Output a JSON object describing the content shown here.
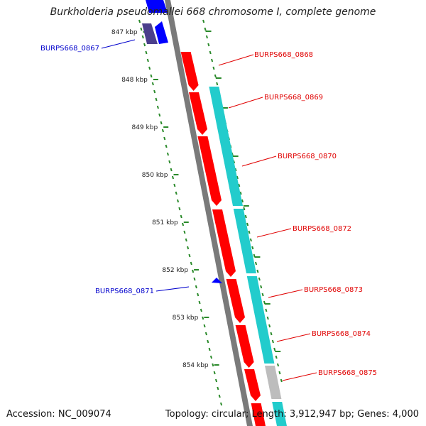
{
  "title": "Burkholderia pseudomallei 668 chromosome I, complete genome",
  "footer": {
    "accession": "Accession: NC_009074",
    "topology": "Topology: circular; Length: 3,912,947 bp; Genes: 4,000"
  },
  "colors": {
    "forward_gene": "#ff0000",
    "reverse_gene": "#0000ff",
    "reverse_gene_dark": "#4b3f8c",
    "cds": "#22cccc",
    "other": "#bdbdbd",
    "backbone": "#7a7a7a",
    "tick": "#2a8a2a"
  },
  "ticks": [
    {
      "label": "847 kbp",
      "kbp": 847
    },
    {
      "label": "848 kbp",
      "kbp": 848
    },
    {
      "label": "849 kbp",
      "kbp": 849
    },
    {
      "label": "850 kbp",
      "kbp": 850
    },
    {
      "label": "851 kbp",
      "kbp": 851
    },
    {
      "label": "852 kbp",
      "kbp": 852
    },
    {
      "label": "853 kbp",
      "kbp": 853
    },
    {
      "label": "854 kbp",
      "kbp": 854
    }
  ],
  "labels": [
    {
      "text": "BURPS668_0867",
      "strand": "reverse"
    },
    {
      "text": "BURPS668_0868",
      "strand": "forward"
    },
    {
      "text": "BURPS668_0869",
      "strand": "forward"
    },
    {
      "text": "BURPS668_0870",
      "strand": "forward"
    },
    {
      "text": "BURPS668_0871",
      "strand": "reverse"
    },
    {
      "text": "BURPS668_0872",
      "strand": "forward"
    },
    {
      "text": "BURPS668_0873",
      "strand": "forward"
    },
    {
      "text": "BURPS668_0874",
      "strand": "forward"
    },
    {
      "text": "BURPS668_0875",
      "strand": "forward"
    }
  ]
}
